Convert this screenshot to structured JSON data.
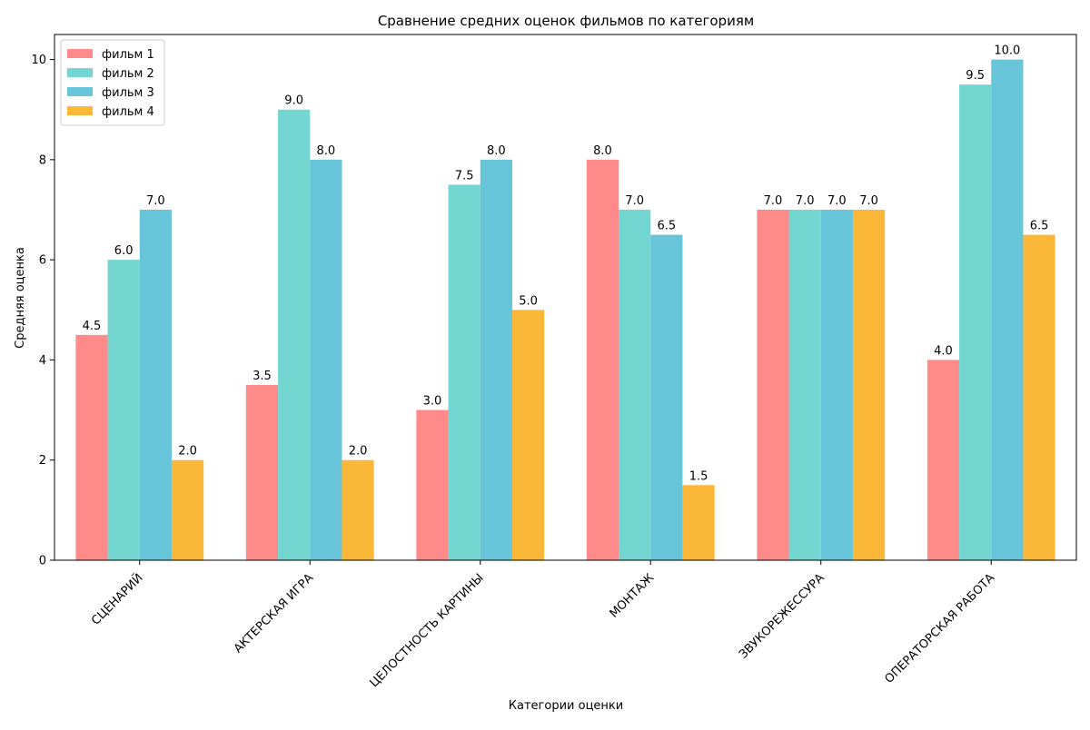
{
  "chart_data": {
    "type": "bar",
    "title": "Сравнение средних оценок фильмов по категориям",
    "xlabel": "Категории оценки",
    "ylabel": "Средняя оценка",
    "ylim": [
      0,
      10.5
    ],
    "yticks": [
      0,
      2,
      4,
      6,
      8,
      10
    ],
    "grid": false,
    "legend_position": "top-left",
    "categories": [
      "СЦЕНАРИЙ",
      "АКТЕРСКАЯ ИГРА",
      "ЦЕЛОСТНОСТЬ КАРТИНЫ",
      "МОНТАЖ",
      "ЗВУКОРЕЖЕССУРА",
      "ОПЕРАТОРСКАЯ РАБОТА"
    ],
    "series": [
      {
        "name": "фильм 1",
        "color": "#FF8A8A",
        "values": [
          4.5,
          3.5,
          3.0,
          8.0,
          7.0,
          4.0
        ]
      },
      {
        "name": "фильм 2",
        "color": "#74D6D0",
        "values": [
          6.0,
          9.0,
          7.5,
          7.0,
          7.0,
          9.5
        ]
      },
      {
        "name": "фильм 3",
        "color": "#68C4D8",
        "values": [
          7.0,
          8.0,
          8.0,
          6.5,
          7.0,
          10.0
        ]
      },
      {
        "name": "фильм 4",
        "color": "#FBB737",
        "values": [
          2.0,
          2.0,
          5.0,
          1.5,
          7.0,
          6.5
        ]
      }
    ]
  }
}
